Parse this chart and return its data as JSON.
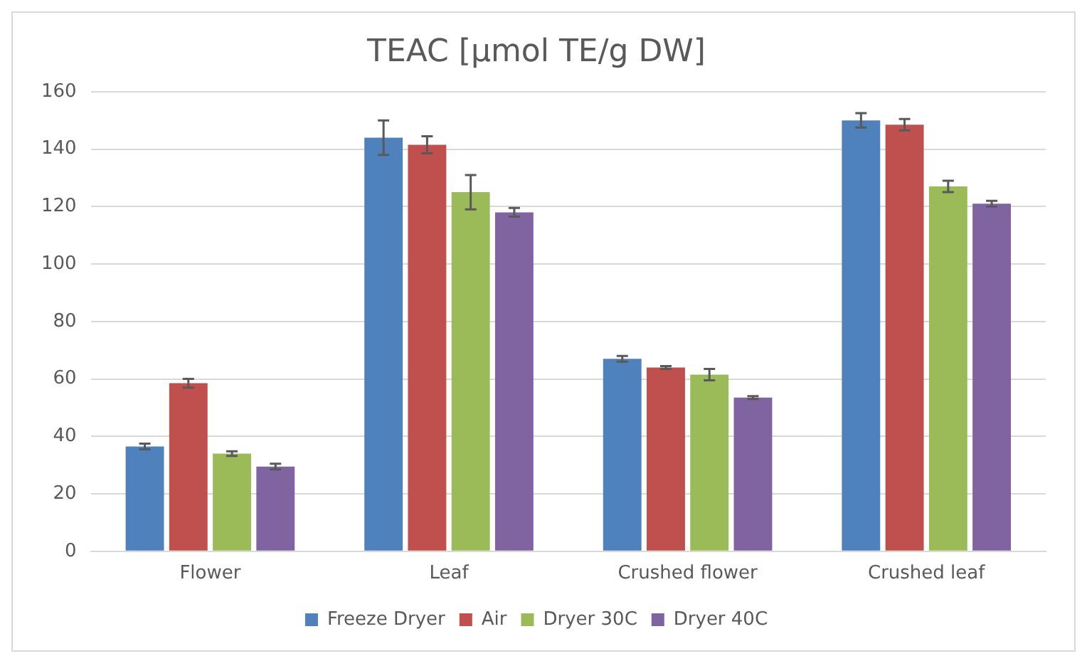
{
  "chart_data": {
    "type": "bar",
    "title": "TEAC [μmol TE/g DW]",
    "categories": [
      "Flower",
      "Leaf",
      "Crushed flower",
      "Crushed leaf"
    ],
    "series": [
      {
        "name": "Freeze Dryer",
        "color": "#4f81bd",
        "values": [
          36.5,
          144,
          67,
          150
        ],
        "errors": [
          1,
          6,
          1,
          2.5
        ]
      },
      {
        "name": "Air",
        "color": "#c0504d",
        "values": [
          58.5,
          141.5,
          64,
          148.5
        ],
        "errors": [
          1.5,
          3,
          0.5,
          2
        ]
      },
      {
        "name": "Dryer 30C",
        "color": "#9bbb59",
        "values": [
          34,
          125,
          61.5,
          127
        ],
        "errors": [
          0.8,
          6,
          2,
          2
        ]
      },
      {
        "name": "Dryer 40C",
        "color": "#8064a2",
        "values": [
          29.5,
          118,
          53.5,
          121
        ],
        "errors": [
          1,
          1.5,
          0.5,
          1
        ]
      }
    ],
    "ylim": [
      0,
      160
    ],
    "yticks": [
      0,
      20,
      40,
      60,
      80,
      100,
      120,
      140,
      160
    ],
    "grid": "y",
    "legend": "bottom"
  }
}
